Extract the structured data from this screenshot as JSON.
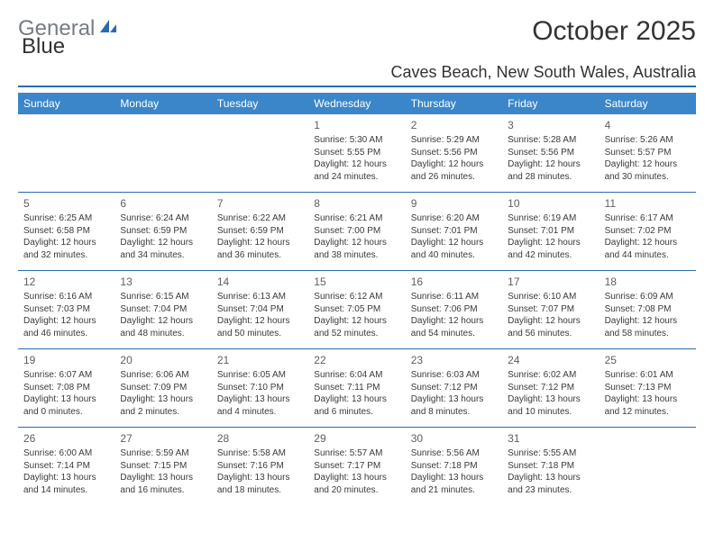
{
  "brand": {
    "part1": "General",
    "part2": "Blue"
  },
  "title": "October 2025",
  "location": "Caves Beach, New South Wales, Australia",
  "colors": {
    "header_bg": "#3a86c8",
    "header_text": "#ffffff",
    "accent": "#2a6bb0",
    "body_text": "#3a3a3a",
    "daynum": "#5a5f66",
    "background": "#ffffff"
  },
  "weekdays": [
    "Sunday",
    "Monday",
    "Tuesday",
    "Wednesday",
    "Thursday",
    "Friday",
    "Saturday"
  ],
  "weeks": [
    [
      null,
      null,
      null,
      {
        "day": "1",
        "sunrise": "5:30 AM",
        "sunset": "5:55 PM",
        "daylight": "12 hours and 24 minutes."
      },
      {
        "day": "2",
        "sunrise": "5:29 AM",
        "sunset": "5:56 PM",
        "daylight": "12 hours and 26 minutes."
      },
      {
        "day": "3",
        "sunrise": "5:28 AM",
        "sunset": "5:56 PM",
        "daylight": "12 hours and 28 minutes."
      },
      {
        "day": "4",
        "sunrise": "5:26 AM",
        "sunset": "5:57 PM",
        "daylight": "12 hours and 30 minutes."
      }
    ],
    [
      {
        "day": "5",
        "sunrise": "6:25 AM",
        "sunset": "6:58 PM",
        "daylight": "12 hours and 32 minutes."
      },
      {
        "day": "6",
        "sunrise": "6:24 AM",
        "sunset": "6:59 PM",
        "daylight": "12 hours and 34 minutes."
      },
      {
        "day": "7",
        "sunrise": "6:22 AM",
        "sunset": "6:59 PM",
        "daylight": "12 hours and 36 minutes."
      },
      {
        "day": "8",
        "sunrise": "6:21 AM",
        "sunset": "7:00 PM",
        "daylight": "12 hours and 38 minutes."
      },
      {
        "day": "9",
        "sunrise": "6:20 AM",
        "sunset": "7:01 PM",
        "daylight": "12 hours and 40 minutes."
      },
      {
        "day": "10",
        "sunrise": "6:19 AM",
        "sunset": "7:01 PM",
        "daylight": "12 hours and 42 minutes."
      },
      {
        "day": "11",
        "sunrise": "6:17 AM",
        "sunset": "7:02 PM",
        "daylight": "12 hours and 44 minutes."
      }
    ],
    [
      {
        "day": "12",
        "sunrise": "6:16 AM",
        "sunset": "7:03 PM",
        "daylight": "12 hours and 46 minutes."
      },
      {
        "day": "13",
        "sunrise": "6:15 AM",
        "sunset": "7:04 PM",
        "daylight": "12 hours and 48 minutes."
      },
      {
        "day": "14",
        "sunrise": "6:13 AM",
        "sunset": "7:04 PM",
        "daylight": "12 hours and 50 minutes."
      },
      {
        "day": "15",
        "sunrise": "6:12 AM",
        "sunset": "7:05 PM",
        "daylight": "12 hours and 52 minutes."
      },
      {
        "day": "16",
        "sunrise": "6:11 AM",
        "sunset": "7:06 PM",
        "daylight": "12 hours and 54 minutes."
      },
      {
        "day": "17",
        "sunrise": "6:10 AM",
        "sunset": "7:07 PM",
        "daylight": "12 hours and 56 minutes."
      },
      {
        "day": "18",
        "sunrise": "6:09 AM",
        "sunset": "7:08 PM",
        "daylight": "12 hours and 58 minutes."
      }
    ],
    [
      {
        "day": "19",
        "sunrise": "6:07 AM",
        "sunset": "7:08 PM",
        "daylight": "13 hours and 0 minutes."
      },
      {
        "day": "20",
        "sunrise": "6:06 AM",
        "sunset": "7:09 PM",
        "daylight": "13 hours and 2 minutes."
      },
      {
        "day": "21",
        "sunrise": "6:05 AM",
        "sunset": "7:10 PM",
        "daylight": "13 hours and 4 minutes."
      },
      {
        "day": "22",
        "sunrise": "6:04 AM",
        "sunset": "7:11 PM",
        "daylight": "13 hours and 6 minutes."
      },
      {
        "day": "23",
        "sunrise": "6:03 AM",
        "sunset": "7:12 PM",
        "daylight": "13 hours and 8 minutes."
      },
      {
        "day": "24",
        "sunrise": "6:02 AM",
        "sunset": "7:12 PM",
        "daylight": "13 hours and 10 minutes."
      },
      {
        "day": "25",
        "sunrise": "6:01 AM",
        "sunset": "7:13 PM",
        "daylight": "13 hours and 12 minutes."
      }
    ],
    [
      {
        "day": "26",
        "sunrise": "6:00 AM",
        "sunset": "7:14 PM",
        "daylight": "13 hours and 14 minutes."
      },
      {
        "day": "27",
        "sunrise": "5:59 AM",
        "sunset": "7:15 PM",
        "daylight": "13 hours and 16 minutes."
      },
      {
        "day": "28",
        "sunrise": "5:58 AM",
        "sunset": "7:16 PM",
        "daylight": "13 hours and 18 minutes."
      },
      {
        "day": "29",
        "sunrise": "5:57 AM",
        "sunset": "7:17 PM",
        "daylight": "13 hours and 20 minutes."
      },
      {
        "day": "30",
        "sunrise": "5:56 AM",
        "sunset": "7:18 PM",
        "daylight": "13 hours and 21 minutes."
      },
      {
        "day": "31",
        "sunrise": "5:55 AM",
        "sunset": "7:18 PM",
        "daylight": "13 hours and 23 minutes."
      },
      null
    ]
  ],
  "labels": {
    "sunrise": "Sunrise:",
    "sunset": "Sunset:",
    "daylight": "Daylight:"
  }
}
